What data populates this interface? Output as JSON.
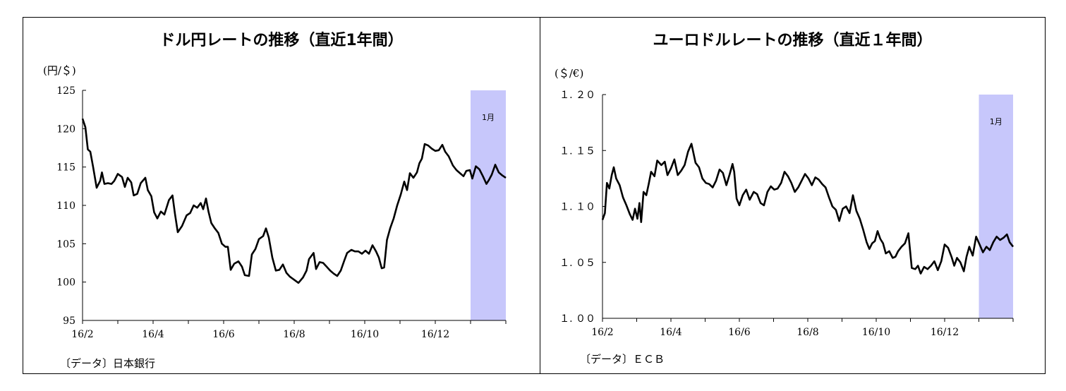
{
  "chart_data": [
    {
      "type": "line",
      "title": "ドル円レートの推移（直近1年間）",
      "ylabel": "(円/＄)",
      "source": "〔データ〕日本銀行",
      "ylim": [
        95,
        125
      ],
      "yticks": [
        95,
        100,
        105,
        110,
        115,
        120,
        125
      ],
      "xlim": [
        0,
        12
      ],
      "xticks": [
        {
          "x": 0,
          "label": "16/2"
        },
        {
          "x": 2,
          "label": "16/4"
        },
        {
          "x": 4,
          "label": "16/6"
        },
        {
          "x": 6,
          "label": "16/8"
        },
        {
          "x": 8,
          "label": "16/10"
        },
        {
          "x": 10,
          "label": "16/12"
        }
      ],
      "highlight": {
        "from": 11,
        "to": 12,
        "label": "1月",
        "color": "#c7c7fb"
      },
      "series": [
        {
          "values": [
            [
              0.0,
              121.3
            ],
            [
              0.08,
              120.2
            ],
            [
              0.15,
              117.3
            ],
            [
              0.22,
              117.0
            ],
            [
              0.3,
              115.0
            ],
            [
              0.4,
              112.3
            ],
            [
              0.5,
              113.2
            ],
            [
              0.55,
              114.3
            ],
            [
              0.62,
              112.8
            ],
            [
              0.72,
              112.9
            ],
            [
              0.82,
              112.8
            ],
            [
              0.9,
              113.2
            ],
            [
              1.0,
              114.1
            ],
            [
              1.12,
              113.7
            ],
            [
              1.2,
              112.4
            ],
            [
              1.28,
              113.6
            ],
            [
              1.38,
              113.0
            ],
            [
              1.45,
              111.3
            ],
            [
              1.55,
              111.5
            ],
            [
              1.65,
              112.9
            ],
            [
              1.78,
              113.6
            ],
            [
              1.85,
              112.0
            ],
            [
              1.95,
              111.2
            ],
            [
              2.03,
              109.1
            ],
            [
              2.12,
              108.3
            ],
            [
              2.22,
              109.2
            ],
            [
              2.32,
              108.8
            ],
            [
              2.45,
              110.7
            ],
            [
              2.55,
              111.3
            ],
            [
              2.62,
              108.9
            ],
            [
              2.7,
              106.5
            ],
            [
              2.82,
              107.3
            ],
            [
              2.95,
              108.7
            ],
            [
              3.05,
              109.0
            ],
            [
              3.15,
              110.0
            ],
            [
              3.25,
              109.7
            ],
            [
              3.35,
              110.3
            ],
            [
              3.42,
              109.5
            ],
            [
              3.5,
              110.9
            ],
            [
              3.57,
              109.2
            ],
            [
              3.65,
              107.7
            ],
            [
              3.75,
              107.0
            ],
            [
              3.85,
              106.4
            ],
            [
              3.95,
              105.0
            ],
            [
              4.05,
              104.6
            ],
            [
              4.12,
              104.6
            ],
            [
              4.2,
              101.6
            ],
            [
              4.3,
              102.4
            ],
            [
              4.42,
              102.7
            ],
            [
              4.52,
              102.0
            ],
            [
              4.6,
              100.9
            ],
            [
              4.72,
              100.8
            ],
            [
              4.8,
              103.6
            ],
            [
              4.9,
              104.3
            ],
            [
              5.0,
              105.6
            ],
            [
              5.12,
              106.0
            ],
            [
              5.2,
              107.0
            ],
            [
              5.28,
              105.8
            ],
            [
              5.38,
              103.2
            ],
            [
              5.48,
              101.5
            ],
            [
              5.58,
              101.6
            ],
            [
              5.68,
              102.3
            ],
            [
              5.78,
              101.2
            ],
            [
              5.88,
              100.7
            ],
            [
              6.0,
              100.3
            ],
            [
              6.12,
              99.9
            ],
            [
              6.25,
              100.6
            ],
            [
              6.35,
              101.5
            ],
            [
              6.42,
              103.0
            ],
            [
              6.55,
              103.8
            ],
            [
              6.62,
              101.7
            ],
            [
              6.72,
              102.6
            ],
            [
              6.82,
              102.5
            ],
            [
              6.92,
              102.0
            ],
            [
              7.02,
              101.5
            ],
            [
              7.12,
              101.1
            ],
            [
              7.22,
              100.8
            ],
            [
              7.32,
              101.5
            ],
            [
              7.42,
              102.8
            ],
            [
              7.5,
              103.8
            ],
            [
              7.62,
              104.2
            ],
            [
              7.72,
              104.0
            ],
            [
              7.82,
              104.0
            ],
            [
              7.92,
              103.7
            ],
            [
              8.02,
              104.1
            ],
            [
              8.12,
              103.7
            ],
            [
              8.22,
              104.8
            ],
            [
              8.32,
              104.0
            ],
            [
              8.4,
              103.2
            ],
            [
              8.48,
              101.8
            ],
            [
              8.55,
              101.9
            ],
            [
              8.63,
              105.5
            ],
            [
              8.72,
              107.0
            ],
            [
              8.82,
              108.3
            ],
            [
              8.92,
              110.0
            ],
            [
              9.02,
              111.4
            ],
            [
              9.12,
              113.1
            ],
            [
              9.2,
              112.0
            ],
            [
              9.28,
              114.2
            ],
            [
              9.38,
              113.6
            ],
            [
              9.48,
              114.3
            ],
            [
              9.55,
              115.5
            ],
            [
              9.62,
              116.1
            ],
            [
              9.7,
              118.0
            ],
            [
              9.8,
              117.8
            ],
            [
              9.9,
              117.4
            ],
            [
              10.0,
              117.1
            ],
            [
              10.1,
              117.2
            ],
            [
              10.2,
              117.9
            ],
            [
              10.28,
              117.0
            ],
            [
              10.38,
              116.4
            ],
            [
              10.5,
              115.2
            ],
            [
              10.6,
              114.6
            ],
            [
              10.7,
              114.2
            ],
            [
              10.8,
              113.8
            ],
            [
              10.88,
              114.5
            ],
            [
              10.98,
              114.6
            ],
            [
              11.05,
              113.5
            ],
            [
              11.15,
              115.1
            ],
            [
              11.25,
              114.7
            ],
            [
              11.35,
              113.8
            ],
            [
              11.45,
              112.8
            ],
            [
              11.52,
              113.3
            ],
            [
              11.6,
              114.0
            ],
            [
              11.7,
              115.3
            ],
            [
              11.8,
              114.3
            ],
            [
              11.9,
              113.9
            ],
            [
              12.0,
              113.6
            ]
          ]
        }
      ]
    },
    {
      "type": "line",
      "title": "ユーロドルレートの推移（直近１年間）",
      "ylabel": "(＄/€)",
      "source": "〔データ〕ＥＣＢ",
      "ylim": [
        1.0,
        1.2
      ],
      "yticks": [
        1.0,
        1.05,
        1.1,
        1.15,
        1.2
      ],
      "yfmt": "jp2",
      "xlim": [
        0,
        12
      ],
      "xticks": [
        {
          "x": 0,
          "label": "16/2"
        },
        {
          "x": 2,
          "label": "16/4"
        },
        {
          "x": 4,
          "label": "16/6"
        },
        {
          "x": 6,
          "label": "16/8"
        },
        {
          "x": 8,
          "label": "16/10"
        },
        {
          "x": 10,
          "label": "16/12"
        }
      ],
      "highlight": {
        "from": 11,
        "to": 12,
        "label": "1月",
        "color": "#c7c7fb"
      },
      "series": [
        {
          "values": [
            [
              0.0,
              1.088
            ],
            [
              0.07,
              1.094
            ],
            [
              0.13,
              1.121
            ],
            [
              0.2,
              1.116
            ],
            [
              0.27,
              1.128
            ],
            [
              0.33,
              1.135
            ],
            [
              0.4,
              1.125
            ],
            [
              0.5,
              1.119
            ],
            [
              0.6,
              1.108
            ],
            [
              0.7,
              1.101
            ],
            [
              0.8,
              1.093
            ],
            [
              0.88,
              1.088
            ],
            [
              0.95,
              1.098
            ],
            [
              1.02,
              1.089
            ],
            [
              1.08,
              1.103
            ],
            [
              1.13,
              1.086
            ],
            [
              1.2,
              1.113
            ],
            [
              1.28,
              1.11
            ],
            [
              1.35,
              1.12
            ],
            [
              1.42,
              1.131
            ],
            [
              1.52,
              1.127
            ],
            [
              1.6,
              1.141
            ],
            [
              1.72,
              1.137
            ],
            [
              1.82,
              1.14
            ],
            [
              1.9,
              1.128
            ],
            [
              2.0,
              1.134
            ],
            [
              2.1,
              1.142
            ],
            [
              2.2,
              1.128
            ],
            [
              2.3,
              1.132
            ],
            [
              2.4,
              1.137
            ],
            [
              2.5,
              1.149
            ],
            [
              2.6,
              1.156
            ],
            [
              2.72,
              1.139
            ],
            [
              2.82,
              1.135
            ],
            [
              2.92,
              1.125
            ],
            [
              3.02,
              1.121
            ],
            [
              3.12,
              1.12
            ],
            [
              3.22,
              1.117
            ],
            [
              3.32,
              1.123
            ],
            [
              3.42,
              1.133
            ],
            [
              3.52,
              1.13
            ],
            [
              3.62,
              1.119
            ],
            [
              3.72,
              1.129
            ],
            [
              3.8,
              1.138
            ],
            [
              3.85,
              1.131
            ],
            [
              3.92,
              1.107
            ],
            [
              4.0,
              1.101
            ],
            [
              4.1,
              1.11
            ],
            [
              4.2,
              1.115
            ],
            [
              4.3,
              1.106
            ],
            [
              4.42,
              1.113
            ],
            [
              4.52,
              1.111
            ],
            [
              4.62,
              1.103
            ],
            [
              4.72,
              1.101
            ],
            [
              4.82,
              1.113
            ],
            [
              4.92,
              1.118
            ],
            [
              5.02,
              1.115
            ],
            [
              5.12,
              1.116
            ],
            [
              5.22,
              1.121
            ],
            [
              5.32,
              1.131
            ],
            [
              5.42,
              1.127
            ],
            [
              5.52,
              1.121
            ],
            [
              5.62,
              1.113
            ],
            [
              5.72,
              1.117
            ],
            [
              5.82,
              1.123
            ],
            [
              5.92,
              1.129
            ],
            [
              6.02,
              1.125
            ],
            [
              6.12,
              1.119
            ],
            [
              6.22,
              1.126
            ],
            [
              6.32,
              1.124
            ],
            [
              6.42,
              1.12
            ],
            [
              6.52,
              1.117
            ],
            [
              6.62,
              1.108
            ],
            [
              6.72,
              1.1
            ],
            [
              6.82,
              1.097
            ],
            [
              6.92,
              1.087
            ],
            [
              7.02,
              1.098
            ],
            [
              7.12,
              1.1
            ],
            [
              7.22,
              1.094
            ],
            [
              7.32,
              1.11
            ],
            [
              7.42,
              1.096
            ],
            [
              7.52,
              1.089
            ],
            [
              7.62,
              1.079
            ],
            [
              7.72,
              1.068
            ],
            [
              7.8,
              1.062
            ],
            [
              7.88,
              1.067
            ],
            [
              7.96,
              1.069
            ],
            [
              8.04,
              1.078
            ],
            [
              8.12,
              1.071
            ],
            [
              8.2,
              1.067
            ],
            [
              8.28,
              1.058
            ],
            [
              8.38,
              1.06
            ],
            [
              8.48,
              1.054
            ],
            [
              8.56,
              1.055
            ],
            [
              8.64,
              1.06
            ],
            [
              8.74,
              1.064
            ],
            [
              8.84,
              1.067
            ],
            [
              8.94,
              1.076
            ],
            [
              9.04,
              1.045
            ],
            [
              9.14,
              1.044
            ],
            [
              9.22,
              1.047
            ],
            [
              9.3,
              1.04
            ],
            [
              9.4,
              1.046
            ],
            [
              9.5,
              1.044
            ],
            [
              9.6,
              1.047
            ],
            [
              9.7,
              1.051
            ],
            [
              9.8,
              1.043
            ],
            [
              9.9,
              1.051
            ],
            [
              10.0,
              1.066
            ],
            [
              10.1,
              1.063
            ],
            [
              10.2,
              1.055
            ],
            [
              10.28,
              1.047
            ],
            [
              10.36,
              1.054
            ],
            [
              10.46,
              1.05
            ],
            [
              10.56,
              1.042
            ],
            [
              10.64,
              1.055
            ],
            [
              10.72,
              1.064
            ],
            [
              10.82,
              1.056
            ],
            [
              10.92,
              1.073
            ],
            [
              11.02,
              1.066
            ],
            [
              11.12,
              1.059
            ],
            [
              11.22,
              1.064
            ],
            [
              11.32,
              1.061
            ],
            [
              11.42,
              1.068
            ],
            [
              11.52,
              1.073
            ],
            [
              11.62,
              1.07
            ],
            [
              11.72,
              1.072
            ],
            [
              11.82,
              1.075
            ],
            [
              11.9,
              1.068
            ],
            [
              12.0,
              1.064
            ]
          ]
        }
      ]
    }
  ]
}
